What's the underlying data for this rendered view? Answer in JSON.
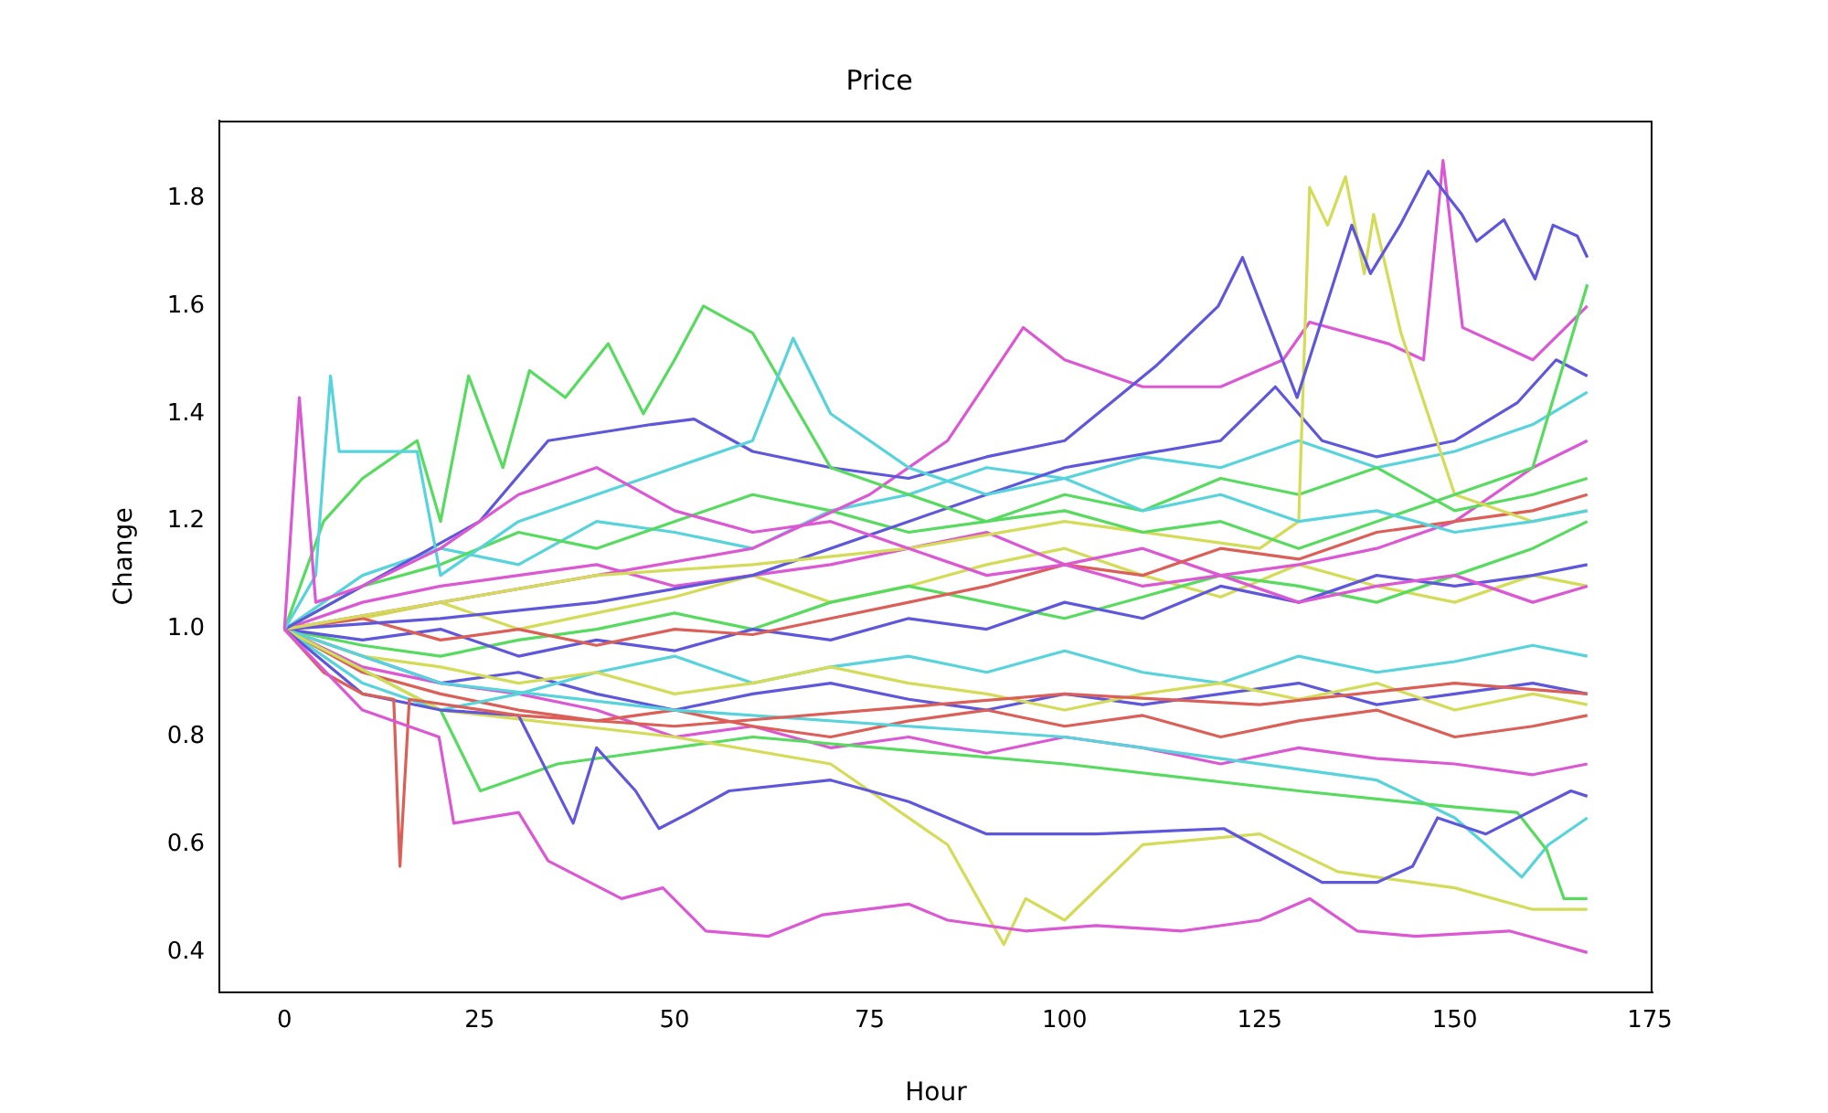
{
  "chart_data": {
    "type": "line",
    "title": "Price",
    "xlabel": "Hour",
    "ylabel": "Change",
    "xlim": [
      -8.35,
      175.35
    ],
    "xticks": [
      0,
      25,
      50,
      75,
      100,
      125,
      150,
      175
    ],
    "ylim": [
      0.326,
      1.944
    ],
    "yticks": [
      0.4,
      0.6,
      0.8,
      {
        "value": 1,
        "label": "1.0"
      },
      1.2,
      1.4,
      1.6,
      1.8
    ],
    "legend": false,
    "series": [
      {
        "color": "#db57d3",
        "x": [
          0,
          10,
          19.8,
          21.7,
          30,
          33.8,
          43.2,
          48.5,
          54,
          62,
          69,
          80,
          85,
          95,
          104,
          115,
          125,
          131.4,
          137.5,
          145,
          157,
          162,
          167
        ],
        "values": [
          1,
          0.85,
          0.8,
          0.64,
          0.66,
          0.57,
          0.5,
          0.52,
          0.44,
          0.43,
          0.47,
          0.49,
          0.46,
          0.44,
          0.45,
          0.44,
          0.46,
          0.5,
          0.44,
          0.43,
          0.44,
          0.42,
          0.4
        ]
      },
      {
        "color": "#db5f57",
        "x": [
          0,
          5,
          10,
          14,
          14.8,
          16,
          30,
          50,
          75,
          100,
          125,
          150,
          167
        ],
        "values": [
          1,
          0.92,
          0.88,
          0.87,
          0.56,
          0.87,
          0.84,
          0.82,
          0.85,
          0.88,
          0.86,
          0.9,
          0.88
        ]
      },
      {
        "color": "#db57d3",
        "x": [
          0,
          1.9,
          4,
          10,
          20,
          30,
          40,
          50,
          60,
          70,
          80,
          90,
          100,
          110,
          120,
          130,
          140,
          150,
          160,
          167
        ],
        "values": [
          1,
          1.43,
          1.05,
          1.08,
          1.15,
          1.25,
          1.3,
          1.22,
          1.18,
          1.2,
          1.15,
          1.1,
          1.12,
          1.08,
          1.1,
          1.05,
          1.08,
          1.1,
          1.05,
          1.08
        ]
      },
      {
        "color": "#57d3db",
        "x": [
          0,
          4,
          5.9,
          7,
          12,
          17,
          20,
          30,
          40,
          50,
          60,
          65.2,
          70,
          80,
          90,
          100,
          110,
          120,
          130,
          140,
          150,
          160,
          167
        ],
        "values": [
          1,
          1.1,
          1.47,
          1.33,
          1.33,
          1.33,
          1.1,
          1.2,
          1.25,
          1.3,
          1.35,
          1.54,
          1.4,
          1.3,
          1.25,
          1.28,
          1.22,
          1.25,
          1.2,
          1.22,
          1.18,
          1.2,
          1.22
        ]
      },
      {
        "color": "#57db5f",
        "x": [
          0,
          5,
          10,
          17,
          20,
          23.6,
          28,
          31.4,
          36,
          41.5,
          46,
          50,
          53.7,
          60,
          70,
          80,
          90,
          100,
          110,
          120,
          130,
          140,
          150,
          160,
          167
        ],
        "values": [
          1,
          1.2,
          1.28,
          1.35,
          1.2,
          1.47,
          1.3,
          1.48,
          1.43,
          1.53,
          1.4,
          1.5,
          1.6,
          1.55,
          1.3,
          1.25,
          1.2,
          1.22,
          1.18,
          1.2,
          1.15,
          1.2,
          1.25,
          1.3,
          1.64
        ]
      },
      {
        "color": "#5f57db",
        "x": [
          0,
          10,
          25,
          33.8,
          47,
          52.5,
          60,
          70,
          80,
          90,
          100,
          111.8,
          119.7,
          122.8,
          129.8,
          136.8,
          139.2,
          143,
          146.6,
          150.9,
          152.8,
          156.3,
          160.3,
          162.6,
          165.7,
          167
        ],
        "values": [
          1,
          1.08,
          1.2,
          1.35,
          1.38,
          1.39,
          1.33,
          1.3,
          1.28,
          1.32,
          1.35,
          1.49,
          1.6,
          1.69,
          1.43,
          1.75,
          1.66,
          1.75,
          1.85,
          1.77,
          1.72,
          1.76,
          1.65,
          1.75,
          1.73,
          1.69
        ]
      },
      {
        "color": "#d3db57",
        "x": [
          0,
          20,
          40,
          60,
          80,
          100,
          125,
          130,
          131.4,
          133.7,
          136,
          138.4,
          139.6,
          143.1,
          150,
          160,
          167
        ],
        "values": [
          1,
          1.05,
          1.1,
          1.12,
          1.15,
          1.2,
          1.15,
          1.2,
          1.82,
          1.75,
          1.84,
          1.66,
          1.77,
          1.55,
          1.25,
          1.2,
          1.22
        ]
      },
      {
        "color": "#db57d3",
        "x": [
          0,
          20,
          40,
          60,
          75,
          85,
          94.7,
          100,
          110,
          120,
          128,
          131.4,
          141.5,
          146,
          148.5,
          151,
          160,
          167
        ],
        "values": [
          1,
          1.05,
          1.1,
          1.15,
          1.25,
          1.35,
          1.56,
          1.5,
          1.45,
          1.45,
          1.5,
          1.57,
          1.53,
          1.5,
          1.87,
          1.56,
          1.5,
          1.6
        ]
      },
      {
        "color": "#5f57db",
        "x": [
          0,
          20,
          40,
          60,
          80,
          100,
          120,
          127,
          133,
          140,
          150,
          158,
          163,
          167
        ],
        "values": [
          1,
          1.02,
          1.05,
          1.1,
          1.2,
          1.3,
          1.35,
          1.45,
          1.35,
          1.32,
          1.35,
          1.42,
          1.5,
          1.47
        ]
      },
      {
        "color": "#5f57db",
        "x": [
          0,
          10,
          20,
          30,
          37,
          40,
          45,
          48,
          52,
          57,
          70,
          80,
          90,
          104,
          120.4,
          133,
          140,
          144.6,
          147.8,
          154,
          164.9,
          167
        ],
        "values": [
          1,
          0.88,
          0.85,
          0.84,
          0.64,
          0.78,
          0.7,
          0.63,
          0.66,
          0.7,
          0.72,
          0.68,
          0.62,
          0.62,
          0.63,
          0.53,
          0.53,
          0.56,
          0.65,
          0.62,
          0.7,
          0.69
        ]
      },
      {
        "color": "#d3db57",
        "x": [
          0,
          20,
          50,
          70,
          85,
          92.2,
          95,
          100,
          110,
          125,
          135,
          150,
          160,
          167
        ],
        "values": [
          1,
          0.85,
          0.8,
          0.75,
          0.6,
          0.415,
          0.5,
          0.46,
          0.6,
          0.62,
          0.55,
          0.52,
          0.48,
          0.48
        ]
      },
      {
        "color": "#57db5f",
        "x": [
          0,
          20,
          25.1,
          35,
          60,
          100,
          130,
          150,
          158,
          161.8,
          164,
          167
        ],
        "values": [
          1,
          0.85,
          0.7,
          0.75,
          0.8,
          0.75,
          0.7,
          0.67,
          0.66,
          0.59,
          0.5,
          0.5
        ]
      },
      {
        "color": "#57d3db",
        "x": [
          0,
          20,
          50,
          80,
          100,
          120,
          140,
          150,
          154,
          158.6,
          162,
          167
        ],
        "values": [
          1,
          0.9,
          0.85,
          0.82,
          0.8,
          0.76,
          0.72,
          0.65,
          0.6,
          0.54,
          0.6,
          0.65
        ]
      },
      {
        "color": "#db5f57",
        "x": [
          0,
          10,
          20,
          30,
          40,
          50,
          60,
          70,
          80,
          90,
          100,
          110,
          120,
          130,
          140,
          150,
          160,
          167
        ],
        "values": [
          1,
          1.02,
          0.98,
          1.0,
          0.97,
          1.0,
          0.99,
          1.02,
          1.05,
          1.08,
          1.12,
          1.1,
          1.15,
          1.13,
          1.18,
          1.2,
          1.22,
          1.25
        ]
      },
      {
        "color": "#d3db57",
        "x": [
          0,
          10,
          20,
          30,
          40,
          50,
          60,
          70,
          80,
          90,
          100,
          110,
          120,
          130,
          140,
          150,
          160,
          167
        ],
        "values": [
          1,
          0.95,
          0.93,
          0.9,
          0.92,
          0.88,
          0.9,
          0.93,
          0.9,
          0.88,
          0.85,
          0.88,
          0.9,
          0.87,
          0.9,
          0.85,
          0.88,
          0.86
        ]
      },
      {
        "color": "#57db5f",
        "x": [
          0,
          10,
          20,
          30,
          40,
          50,
          60,
          70,
          80,
          90,
          100,
          110,
          120,
          130,
          140,
          150,
          160,
          167
        ],
        "values": [
          1,
          1.08,
          1.12,
          1.18,
          1.15,
          1.2,
          1.25,
          1.22,
          1.18,
          1.2,
          1.25,
          1.22,
          1.28,
          1.25,
          1.3,
          1.22,
          1.25,
          1.28
        ]
      },
      {
        "color": "#57d3db",
        "x": [
          0,
          10,
          20,
          30,
          40,
          50,
          60,
          70,
          80,
          90,
          100,
          110,
          120,
          130,
          140,
          150,
          160,
          167
        ],
        "values": [
          1,
          0.9,
          0.85,
          0.88,
          0.92,
          0.95,
          0.9,
          0.93,
          0.95,
          0.92,
          0.96,
          0.92,
          0.9,
          0.95,
          0.92,
          0.94,
          0.97,
          0.95
        ]
      },
      {
        "color": "#5f57db",
        "x": [
          0,
          10,
          20,
          30,
          40,
          50,
          60,
          70,
          80,
          90,
          100,
          110,
          120,
          130,
          140,
          150,
          160,
          167
        ],
        "values": [
          1,
          0.98,
          1.0,
          0.95,
          0.98,
          0.96,
          1.0,
          0.98,
          1.02,
          1.0,
          1.05,
          1.02,
          1.08,
          1.05,
          1.1,
          1.08,
          1.1,
          1.12
        ]
      },
      {
        "color": "#db57d3",
        "x": [
          0,
          10,
          20,
          30,
          40,
          50,
          60,
          70,
          80,
          90,
          100,
          110,
          120,
          130,
          140,
          150,
          160,
          167
        ],
        "values": [
          1,
          1.05,
          1.08,
          1.1,
          1.12,
          1.08,
          1.1,
          1.12,
          1.15,
          1.18,
          1.12,
          1.15,
          1.1,
          1.12,
          1.15,
          1.2,
          1.3,
          1.35
        ]
      },
      {
        "color": "#db5f57",
        "x": [
          0,
          10,
          20,
          30,
          40,
          50,
          60,
          70,
          80,
          90,
          100,
          110,
          120,
          130,
          140,
          150,
          160,
          167
        ],
        "values": [
          1,
          0.92,
          0.88,
          0.85,
          0.83,
          0.85,
          0.82,
          0.8,
          0.83,
          0.85,
          0.82,
          0.84,
          0.8,
          0.83,
          0.85,
          0.8,
          0.82,
          0.84
        ]
      },
      {
        "color": "#57db5f",
        "x": [
          0,
          10,
          20,
          30,
          40,
          50,
          60,
          70,
          80,
          90,
          100,
          110,
          120,
          130,
          140,
          150,
          160,
          167
        ],
        "values": [
          1,
          0.97,
          0.95,
          0.98,
          1.0,
          1.03,
          1.0,
          1.05,
          1.08,
          1.05,
          1.02,
          1.06,
          1.1,
          1.08,
          1.05,
          1.1,
          1.15,
          1.2
        ]
      },
      {
        "color": "#57d3db",
        "x": [
          0,
          10,
          20,
          30,
          40,
          50,
          60,
          70,
          80,
          90,
          100,
          110,
          120,
          130,
          140,
          150,
          160,
          167
        ],
        "values": [
          1,
          1.1,
          1.15,
          1.12,
          1.2,
          1.18,
          1.15,
          1.22,
          1.25,
          1.3,
          1.28,
          1.32,
          1.3,
          1.35,
          1.3,
          1.33,
          1.38,
          1.44
        ]
      },
      {
        "color": "#d3db57",
        "x": [
          0,
          10,
          20,
          30,
          40,
          50,
          60,
          70,
          80,
          90,
          100,
          110,
          120,
          130,
          140,
          150,
          160,
          167
        ],
        "values": [
          1,
          1.02,
          1.05,
          1.0,
          1.03,
          1.06,
          1.1,
          1.05,
          1.08,
          1.12,
          1.15,
          1.1,
          1.06,
          1.12,
          1.08,
          1.05,
          1.1,
          1.08
        ]
      },
      {
        "color": "#5f57db",
        "x": [
          0,
          10,
          20,
          30,
          40,
          50,
          60,
          70,
          80,
          90,
          100,
          110,
          120,
          130,
          140,
          150,
          160,
          167
        ],
        "values": [
          1,
          0.95,
          0.9,
          0.92,
          0.88,
          0.85,
          0.88,
          0.9,
          0.87,
          0.85,
          0.88,
          0.86,
          0.88,
          0.9,
          0.86,
          0.88,
          0.9,
          0.88
        ]
      },
      {
        "color": "#db57d3",
        "x": [
          0,
          10,
          20,
          30,
          40,
          50,
          60,
          70,
          80,
          90,
          100,
          110,
          120,
          130,
          140,
          150,
          160,
          167
        ],
        "values": [
          1,
          0.93,
          0.9,
          0.88,
          0.85,
          0.8,
          0.82,
          0.78,
          0.8,
          0.77,
          0.8,
          0.78,
          0.75,
          0.78,
          0.76,
          0.75,
          0.73,
          0.75
        ]
      }
    ]
  }
}
